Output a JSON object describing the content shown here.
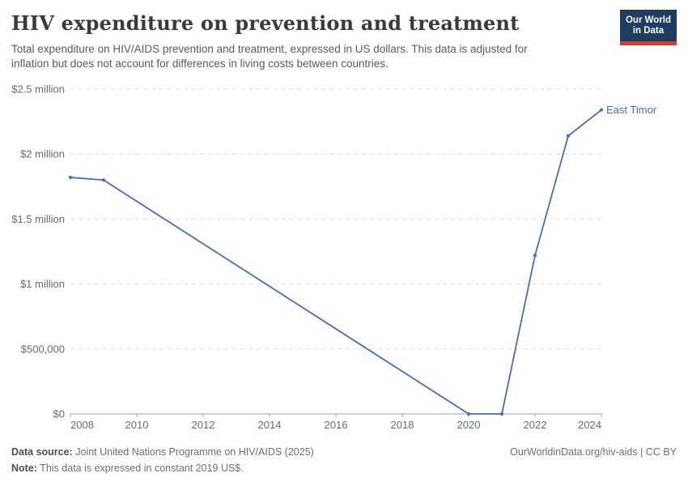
{
  "header": {
    "title": "HIV expenditure on prevention and treatment",
    "subtitle_line1": "Total expenditure on HIV/AIDS prevention and treatment, expressed in US dollars. This data is adjusted for",
    "subtitle_line2": "inflation but does not account for differences in living costs between countries.",
    "logo": {
      "line1": "Our World",
      "line2": "in Data",
      "bg_color": "#1d3d63",
      "accent_color": "#dc3b2b"
    }
  },
  "chart_data": {
    "type": "line",
    "title": "HIV expenditure on prevention and treatment",
    "xlabel": "",
    "ylabel": "",
    "xlim": [
      2008,
      2024
    ],
    "ylim": [
      0,
      2500000
    ],
    "grid": "horizontal-dashed",
    "legend_position": "end-of-line-label",
    "x_ticks": [
      2008,
      2010,
      2012,
      2014,
      2016,
      2018,
      2020,
      2022,
      2024
    ],
    "y_ticks": [
      {
        "value": 0,
        "label": "$0"
      },
      {
        "value": 500000,
        "label": "$500,000"
      },
      {
        "value": 1000000,
        "label": "$1 million"
      },
      {
        "value": 1500000,
        "label": "$1.5 million"
      },
      {
        "value": 2000000,
        "label": "$2 million"
      },
      {
        "value": 2500000,
        "label": "$2.5 million"
      }
    ],
    "series": [
      {
        "name": "East Timor",
        "color": "#4a6db0",
        "points": [
          [
            2008,
            1820000
          ],
          [
            2009,
            1800000
          ],
          [
            2020,
            0
          ],
          [
            2021,
            0
          ],
          [
            2022,
            1220000
          ],
          [
            2023,
            2140000
          ],
          [
            2024,
            2340000
          ]
        ]
      }
    ]
  },
  "footer": {
    "source_label": "Data source:",
    "source_text": "Joint United Nations Programme on HIV/AIDS (2025)",
    "note_label": "Note:",
    "note_text": "This data is expressed in constant 2019 US$.",
    "link": "OurWorldinData.org/hiv-aids | CC BY"
  }
}
